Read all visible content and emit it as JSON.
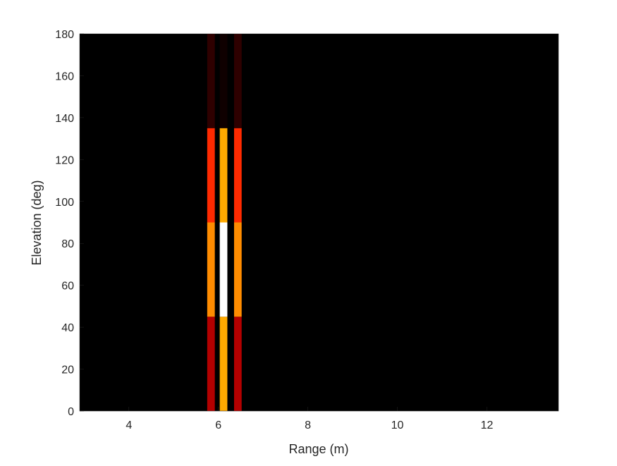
{
  "chart_data": {
    "type": "heatmap",
    "title": "",
    "xlabel": "Range (m)",
    "ylabel": "Elevation (deg)",
    "xlim": [
      2.9,
      13.6
    ],
    "ylim": [
      0,
      180
    ],
    "xticks": [
      4,
      6,
      8,
      10,
      12
    ],
    "xtick_labels": [
      "4",
      "6",
      "8",
      "10",
      "12"
    ],
    "yticks": [
      0,
      20,
      40,
      60,
      80,
      100,
      120,
      140,
      160,
      180
    ],
    "ytick_labels": [
      "0",
      "20",
      "40",
      "60",
      "80",
      "100",
      "120",
      "140",
      "160",
      "180"
    ],
    "background_color": "#000000",
    "colormap": "hot",
    "cells": [
      {
        "x0": 5.75,
        "x1": 5.92,
        "y0": 0,
        "y1": 45,
        "color": "#b30000"
      },
      {
        "x0": 5.75,
        "x1": 5.92,
        "y0": 45,
        "y1": 90,
        "color": "#ff8c00"
      },
      {
        "x0": 5.75,
        "x1": 5.92,
        "y0": 90,
        "y1": 135,
        "color": "#ff2a00"
      },
      {
        "x0": 5.75,
        "x1": 5.92,
        "y0": 135,
        "y1": 180,
        "color": "#2e0000"
      },
      {
        "x0": 6.03,
        "x1": 6.2,
        "y0": 0,
        "y1": 45,
        "color": "#ffaa00"
      },
      {
        "x0": 6.03,
        "x1": 6.2,
        "y0": 45,
        "y1": 90,
        "color": "#ffffff"
      },
      {
        "x0": 6.03,
        "x1": 6.2,
        "y0": 90,
        "y1": 135,
        "color": "#ffaa00"
      },
      {
        "x0": 6.03,
        "x1": 6.2,
        "y0": 135,
        "y1": 180,
        "color": "#0f0000"
      },
      {
        "x0": 6.35,
        "x1": 6.52,
        "y0": 0,
        "y1": 45,
        "color": "#b30000"
      },
      {
        "x0": 6.35,
        "x1": 6.52,
        "y0": 45,
        "y1": 90,
        "color": "#ff8c00"
      },
      {
        "x0": 6.35,
        "x1": 6.52,
        "y0": 90,
        "y1": 135,
        "color": "#ff2a00"
      },
      {
        "x0": 6.35,
        "x1": 6.52,
        "y0": 135,
        "y1": 180,
        "color": "#2e0000"
      }
    ]
  }
}
